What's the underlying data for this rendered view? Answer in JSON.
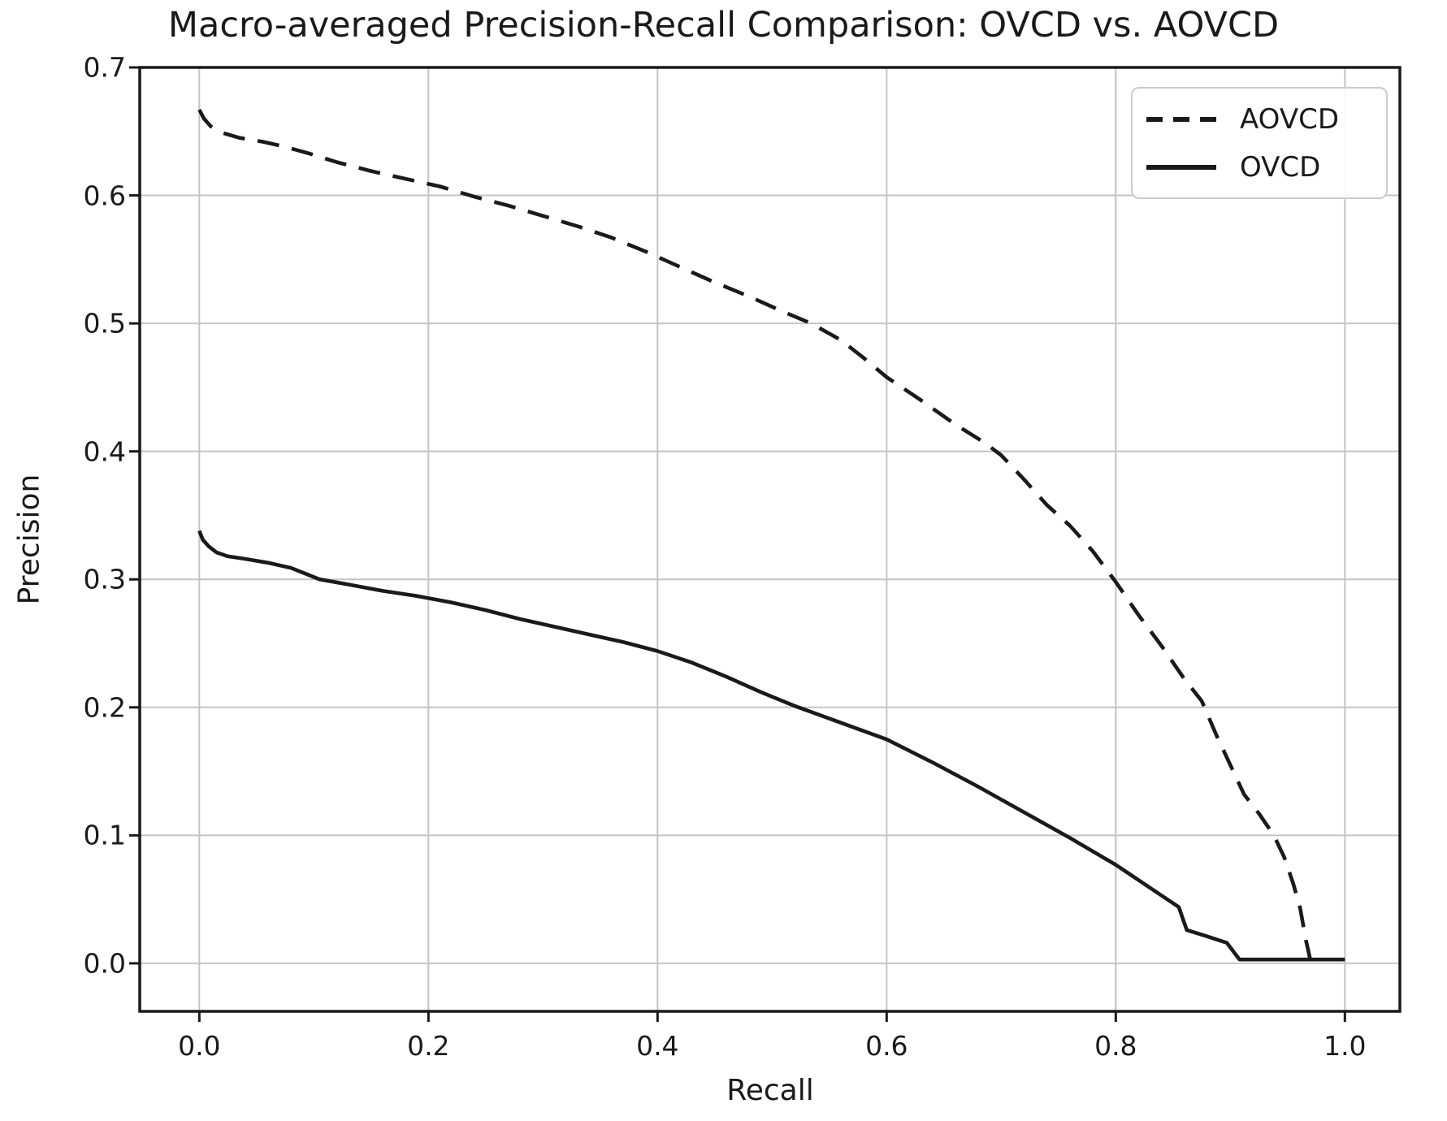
{
  "title": "Macro-averaged Precision-Recall Comparison: OVCD vs. AOVCD",
  "axes": {
    "xlabel": "Recall",
    "ylabel": "Precision",
    "x_ticks": [
      {
        "value": 0.0,
        "label": "0.0"
      },
      {
        "value": 0.2,
        "label": "0.2"
      },
      {
        "value": 0.4,
        "label": "0.4"
      },
      {
        "value": 0.6,
        "label": "0.6"
      },
      {
        "value": 0.8,
        "label": "0.8"
      },
      {
        "value": 1.0,
        "label": "1.0"
      }
    ],
    "y_ticks": [
      {
        "value": 0.0,
        "label": "0.0"
      },
      {
        "value": 0.1,
        "label": "0.1"
      },
      {
        "value": 0.2,
        "label": "0.2"
      },
      {
        "value": 0.3,
        "label": "0.3"
      },
      {
        "value": 0.4,
        "label": "0.4"
      },
      {
        "value": 0.5,
        "label": "0.5"
      },
      {
        "value": 0.6,
        "label": "0.6"
      },
      {
        "value": 0.7,
        "label": "0.7"
      }
    ]
  },
  "legend": {
    "items": [
      {
        "label": "AOVCD",
        "line_style": "dashed"
      },
      {
        "label": "OVCD",
        "line_style": "solid"
      }
    ]
  },
  "colors": {
    "line": "#1a1a1a",
    "grid": "#c4c4c4",
    "spine": "#1a1a1a",
    "text": "#1a1a1a",
    "legend_border": "#cccccc",
    "background": "#ffffff"
  },
  "chart_data": {
    "type": "line",
    "title": "Macro-averaged Precision-Recall Comparison: OVCD vs. AOVCD",
    "xlabel": "Recall",
    "ylabel": "Precision",
    "xlim": [
      -0.052,
      1.048
    ],
    "ylim": [
      -0.0375,
      0.7
    ],
    "grid": true,
    "legend_position": "upper right",
    "x_tick_values": [
      0.0,
      0.2,
      0.4,
      0.6,
      0.8,
      1.0
    ],
    "y_tick_values": [
      0.0,
      0.1,
      0.2,
      0.3,
      0.4,
      0.5,
      0.6,
      0.7
    ],
    "series": [
      {
        "name": "AOVCD",
        "style": "dashed",
        "color": "#1a1a1a",
        "points": [
          [
            0.0,
            0.667
          ],
          [
            0.004,
            0.66
          ],
          [
            0.01,
            0.654
          ],
          [
            0.02,
            0.649
          ],
          [
            0.035,
            0.645
          ],
          [
            0.055,
            0.642
          ],
          [
            0.075,
            0.638
          ],
          [
            0.095,
            0.633
          ],
          [
            0.12,
            0.626
          ],
          [
            0.15,
            0.619
          ],
          [
            0.18,
            0.613
          ],
          [
            0.21,
            0.607
          ],
          [
            0.24,
            0.599
          ],
          [
            0.27,
            0.592
          ],
          [
            0.3,
            0.584
          ],
          [
            0.33,
            0.576
          ],
          [
            0.36,
            0.567
          ],
          [
            0.39,
            0.556
          ],
          [
            0.42,
            0.544
          ],
          [
            0.45,
            0.532
          ],
          [
            0.48,
            0.521
          ],
          [
            0.51,
            0.509
          ],
          [
            0.534,
            0.5
          ],
          [
            0.56,
            0.487
          ],
          [
            0.58,
            0.473
          ],
          [
            0.6,
            0.458
          ],
          [
            0.63,
            0.44
          ],
          [
            0.66,
            0.421
          ],
          [
            0.685,
            0.407
          ],
          [
            0.7,
            0.397
          ],
          [
            0.72,
            0.378
          ],
          [
            0.74,
            0.358
          ],
          [
            0.76,
            0.342
          ],
          [
            0.78,
            0.322
          ],
          [
            0.8,
            0.298
          ],
          [
            0.82,
            0.272
          ],
          [
            0.84,
            0.248
          ],
          [
            0.86,
            0.222
          ],
          [
            0.875,
            0.205
          ],
          [
            0.888,
            0.178
          ],
          [
            0.9,
            0.155
          ],
          [
            0.912,
            0.132
          ],
          [
            0.925,
            0.117
          ],
          [
            0.938,
            0.1
          ],
          [
            0.947,
            0.083
          ],
          [
            0.955,
            0.062
          ],
          [
            0.961,
            0.043
          ],
          [
            0.966,
            0.018
          ],
          [
            0.97,
            0.002
          ]
        ]
      },
      {
        "name": "OVCD",
        "style": "solid",
        "color": "#1a1a1a",
        "points": [
          [
            0.0,
            0.338
          ],
          [
            0.003,
            0.331
          ],
          [
            0.008,
            0.326
          ],
          [
            0.015,
            0.321
          ],
          [
            0.025,
            0.318
          ],
          [
            0.04,
            0.316
          ],
          [
            0.06,
            0.313
          ],
          [
            0.08,
            0.309
          ],
          [
            0.105,
            0.3
          ],
          [
            0.13,
            0.296
          ],
          [
            0.16,
            0.291
          ],
          [
            0.19,
            0.287
          ],
          [
            0.22,
            0.282
          ],
          [
            0.25,
            0.276
          ],
          [
            0.28,
            0.269
          ],
          [
            0.31,
            0.263
          ],
          [
            0.34,
            0.257
          ],
          [
            0.37,
            0.251
          ],
          [
            0.4,
            0.244
          ],
          [
            0.43,
            0.235
          ],
          [
            0.46,
            0.224
          ],
          [
            0.49,
            0.212
          ],
          [
            0.52,
            0.201
          ],
          [
            0.56,
            0.188
          ],
          [
            0.6,
            0.175
          ],
          [
            0.64,
            0.157
          ],
          [
            0.68,
            0.138
          ],
          [
            0.72,
            0.118
          ],
          [
            0.76,
            0.098
          ],
          [
            0.8,
            0.077
          ],
          [
            0.83,
            0.059
          ],
          [
            0.855,
            0.044
          ],
          [
            0.862,
            0.026
          ],
          [
            0.88,
            0.021
          ],
          [
            0.897,
            0.016
          ],
          [
            0.908,
            0.003
          ],
          [
            0.95,
            0.003
          ],
          [
            1.0,
            0.003
          ]
        ]
      }
    ]
  }
}
